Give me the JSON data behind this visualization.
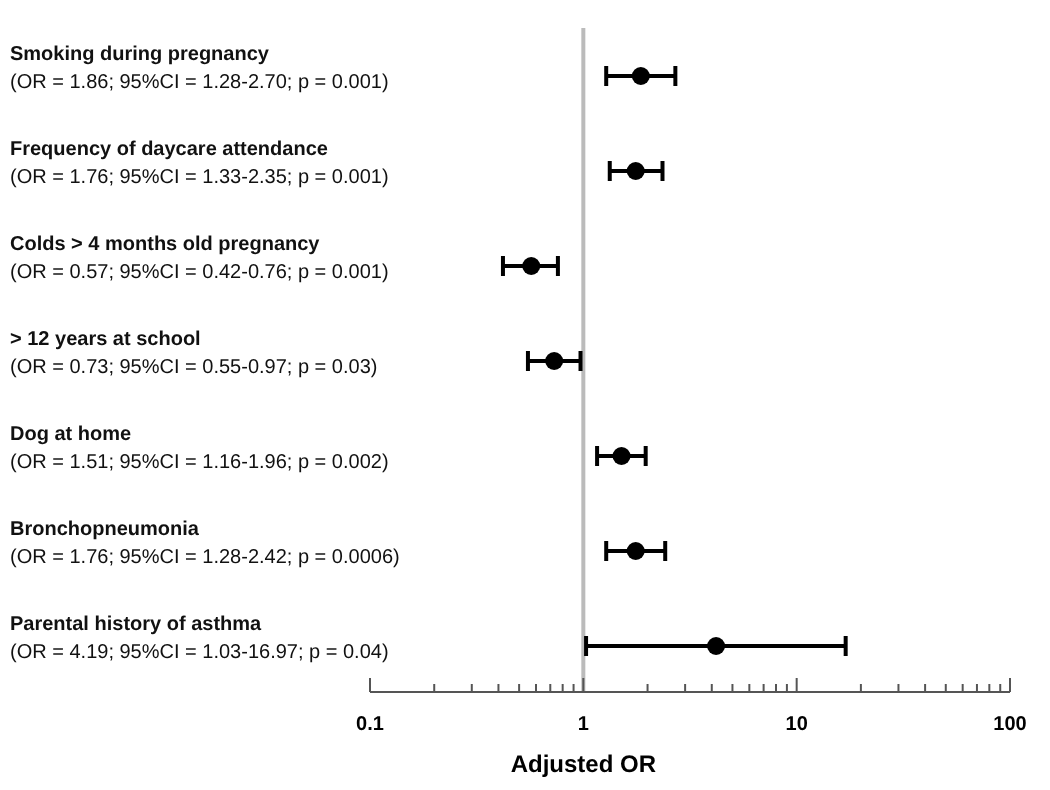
{
  "chart_data": {
    "type": "scatter",
    "orientation": "horizontal",
    "xlabel": "Adjusted OR",
    "log": "x",
    "categories": [
      "Smoking during pregnancy\n(OR = 1.86; 95%CI = 1.28-2.70; p = 0.001)",
      "Frequency of daycare attendance\n(OR = 1.76; 95%CI = 1.33-2.35; p = 0.001)",
      "Colds > 4 months old pregnancy\n(OR = 0.57; 95%CI = 0.42-0.76; p = 0.001)",
      "> 12 years at school\n(OR = 0.73; 95%CI = 0.55-0.97; p = 0.03)",
      "Dog at home\n(OR = 1.51; 95%CI = 1.16-1.96; p = 0.002)",
      "Bronchopneumonia\n(OR = 1.76; 95%CI = 1.28-2.42; p = 0.0006)",
      "Parental history of asthma\n(OR = 4.19; 95%CI = 1.03-16.97; p = 0.04)"
    ],
    "values": [
      1.86,
      1.76,
      0.57,
      0.73,
      1.51,
      1.76,
      4.19
    ],
    "errors": [
      [
        1.28,
        2.7
      ],
      [
        1.33,
        2.35
      ],
      [
        0.42,
        0.76
      ],
      [
        0.55,
        0.97
      ],
      [
        1.16,
        1.96
      ],
      [
        1.28,
        2.42
      ],
      [
        1.03,
        16.97
      ]
    ],
    "color": "#000000",
    "marker": "circle",
    "xlim": [
      0.1,
      100
    ],
    "xticks": [
      0.1,
      {
        "value": 0.2,
        "label": null
      },
      {
        "value": 0.3,
        "label": null
      },
      {
        "value": 0.4,
        "label": null
      },
      {
        "value": 0.5,
        "label": null
      },
      {
        "value": 0.6,
        "label": null
      },
      {
        "value": 0.7,
        "label": null
      },
      {
        "value": 0.8,
        "label": null
      },
      {
        "value": 0.9,
        "label": null
      },
      1,
      {
        "value": 2,
        "label": null
      },
      {
        "value": 3,
        "label": null
      },
      {
        "value": 4,
        "label": null
      },
      {
        "value": 5,
        "label": null
      },
      {
        "value": 6,
        "label": null
      },
      {
        "value": 7,
        "label": null
      },
      {
        "value": 8,
        "label": null
      },
      {
        "value": 9,
        "label": null
      },
      10,
      {
        "value": 20,
        "label": null
      },
      {
        "value": 30,
        "label": null
      },
      {
        "value": 40,
        "label": null
      },
      {
        "value": 50,
        "label": null
      },
      {
        "value": 60,
        "label": null
      },
      {
        "value": 70,
        "label": null
      },
      {
        "value": 80,
        "label": null
      },
      {
        "value": 90,
        "label": null
      },
      100
    ],
    "ref_lines": [
      {
        "axis": "x",
        "value": 1,
        "color": "#bbbbbb"
      }
    ],
    "grid": false
  }
}
